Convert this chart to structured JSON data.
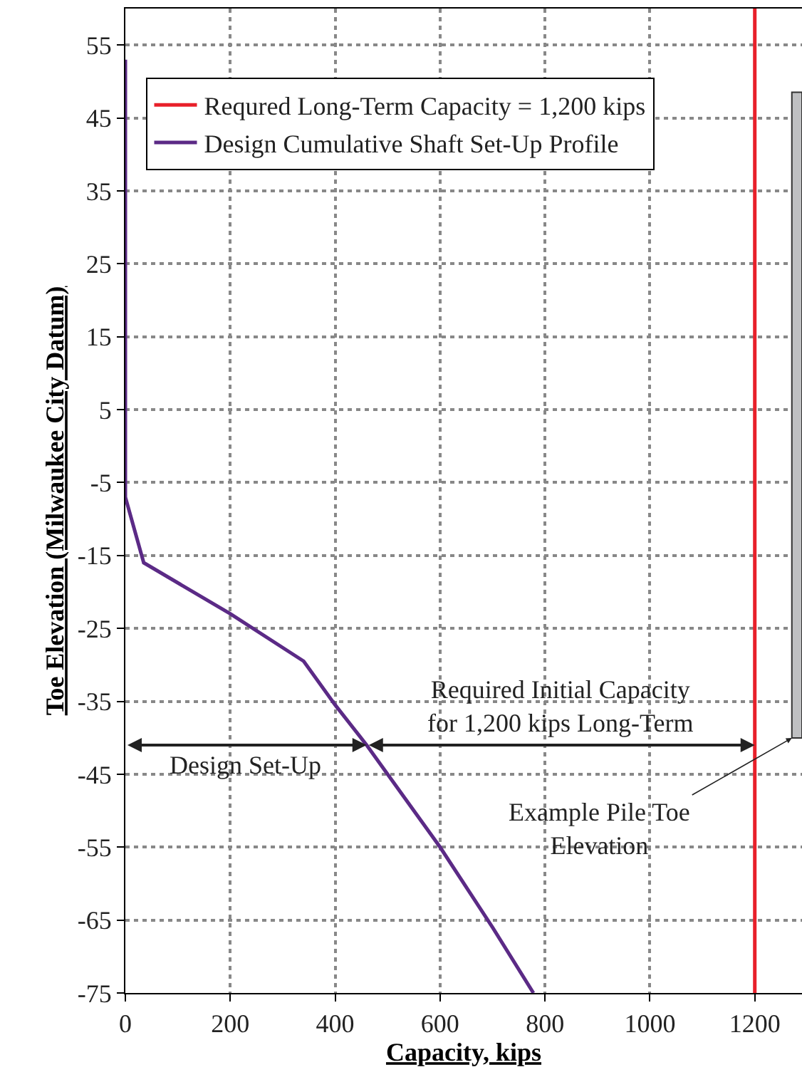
{
  "chart_data": {
    "type": "line",
    "xlabel": "Capacity, kips",
    "ylabel": "Toe Elevation (Milwaukee City Datum)",
    "series": [
      {
        "name": "Requred Long-Term Capacity = 1,200 kips",
        "color": "#e8202a",
        "x": [
          1200,
          1200
        ],
        "values": [
          -75,
          60
        ]
      },
      {
        "name": "Design Cumulative Shaft Set-Up Profile",
        "color": "#5b2a86",
        "x": [
          0,
          0,
          35,
          200,
          340,
          400,
          460,
          600,
          700,
          778
        ],
        "values": [
          53,
          -7,
          -16,
          -23,
          -29.5,
          -35.5,
          -41,
          -55,
          -66,
          -75
        ]
      }
    ],
    "annotations": [
      {
        "text": "Design Set-Up",
        "x": 460,
        "y": -41
      },
      {
        "text": "Required Initial Capacity\nfor 1,200 kips Long-Term",
        "x": 1200,
        "y": -41
      },
      "Example Pile Toe\nElevation"
    ],
    "xlim": [
      0,
      1290
    ],
    "ylim": [
      -75,
      60
    ],
    "xticks": [
      0,
      200,
      400,
      600,
      800,
      1000,
      1200
    ],
    "yticks": [
      55,
      45,
      35,
      25,
      15,
      5,
      -5,
      -15,
      -25,
      -35,
      -45,
      -55,
      -65,
      -75
    ],
    "grid": true,
    "legend": "top left",
    "line_style": "solid",
    "marker": "none"
  }
}
